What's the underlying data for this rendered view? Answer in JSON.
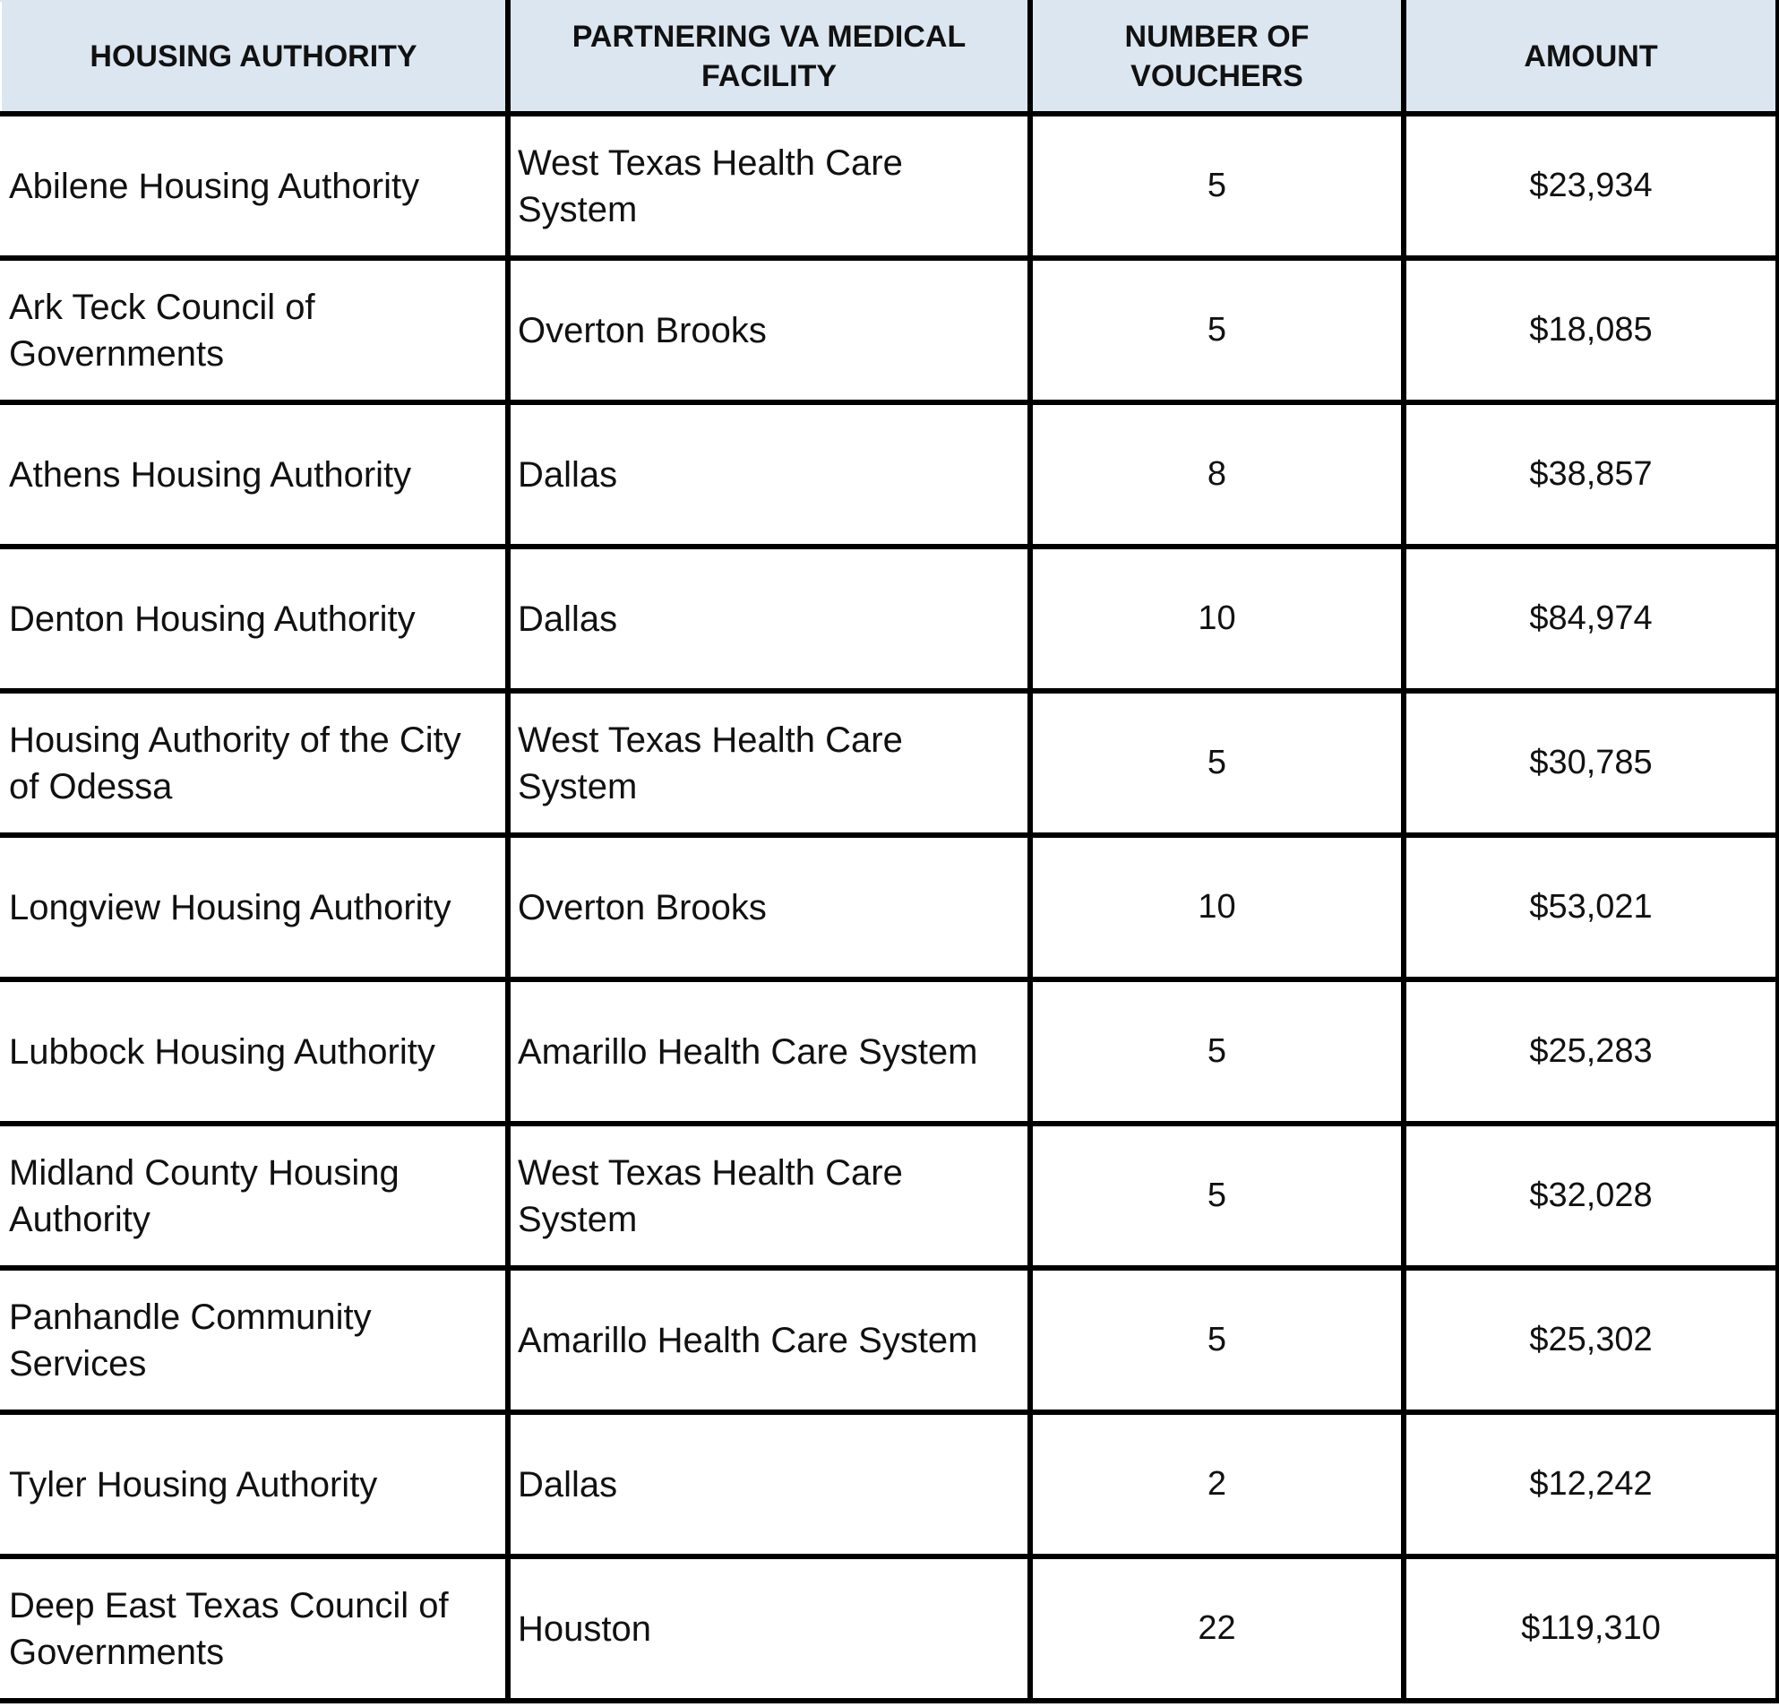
{
  "table": {
    "header": [
      "HOUSING AUTHORITY",
      "PARTNERING VA MEDICAL FACILITY",
      "NUMBER OF VOUCHERS",
      "AMOUNT"
    ],
    "rows": [
      [
        "Abilene Housing Authority",
        "West Texas Health Care System",
        5,
        "$23,934"
      ],
      [
        "Ark Teck Council of Governments",
        "Overton Brooks",
        5,
        "$18,085"
      ],
      [
        "Athens Housing Authority",
        "Dallas",
        8,
        "$38,857"
      ],
      [
        "Denton Housing Authority",
        "Dallas",
        10,
        "$84,974"
      ],
      [
        "Housing Authority of the City of Odessa",
        "West Texas Health Care System",
        5,
        "$30,785"
      ],
      [
        "Longview Housing Authority",
        "Overton Brooks",
        10,
        "$53,021"
      ],
      [
        "Lubbock Housing Authority",
        "Amarillo Health Care System",
        5,
        "$25,283"
      ],
      [
        "Midland County Housing Authority",
        "West Texas Health Care System",
        5,
        "$32,028"
      ],
      [
        "Panhandle Community Services",
        "Amarillo Health Care System",
        5,
        "$25,302"
      ],
      [
        "Tyler Housing Authority",
        "Dallas",
        2,
        "$12,242"
      ],
      [
        "Deep East Texas Council of Governments",
        "Houston",
        22,
        "$119,310"
      ]
    ]
  }
}
